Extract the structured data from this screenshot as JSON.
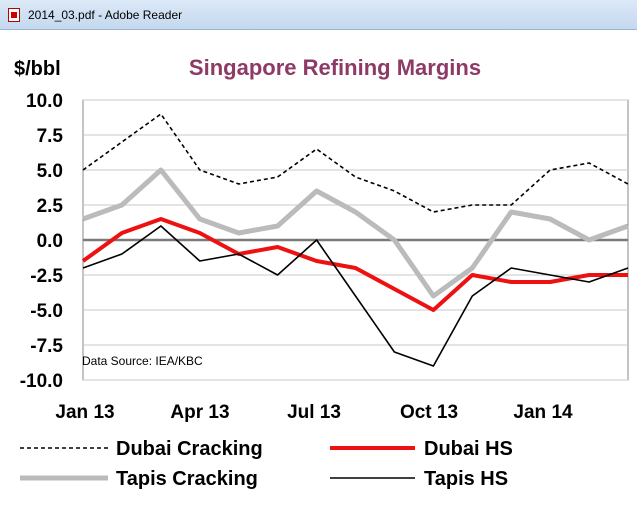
{
  "window": {
    "title": "2014_03.pdf - Adobe Reader"
  },
  "chart_data": {
    "type": "line",
    "title": "Singapore Refining Margins",
    "ylabel": "$/bbl",
    "xlabel": "",
    "ylim": [
      -10,
      10
    ],
    "yticks": [
      "10.0",
      "7.5",
      "5.0",
      "2.5",
      "0.0",
      "-2.5",
      "-5.0",
      "-7.5",
      "-10.0"
    ],
    "xticks": [
      "Jan 13",
      "Apr 13",
      "Jul 13",
      "Oct 13",
      "Jan 14"
    ],
    "grid": true,
    "legend_position": "bottom",
    "annotation": "Data Source:  IEA/KBC",
    "x": [
      "2013-01",
      "2013-02",
      "2013-03",
      "2013-04",
      "2013-05",
      "2013-06",
      "2013-07",
      "2013-08",
      "2013-09",
      "2013-10",
      "2013-11",
      "2013-12",
      "2014-01",
      "2014-02",
      "2014-03"
    ],
    "series": [
      {
        "name": "Dubai Cracking",
        "color": "#000000",
        "style": "dashed",
        "values": [
          5.0,
          7.0,
          9.0,
          5.0,
          4.0,
          4.5,
          6.5,
          4.5,
          3.5,
          2.0,
          2.5,
          2.5,
          5.0,
          5.5,
          4.0
        ]
      },
      {
        "name": "Dubai HS",
        "color": "#ee1111",
        "style": "solid",
        "values": [
          -1.5,
          0.5,
          1.5,
          0.5,
          -1.0,
          -0.5,
          -1.5,
          -2.0,
          -3.5,
          -5.0,
          -2.5,
          -3.0,
          -3.0,
          -2.5,
          -2.5
        ]
      },
      {
        "name": "Tapis Cracking",
        "color": "#bbbbbb",
        "style": "solid",
        "values": [
          1.5,
          2.5,
          5.0,
          1.5,
          0.5,
          1.0,
          3.5,
          2.0,
          0.0,
          -4.0,
          -2.0,
          2.0,
          1.5,
          0.0,
          1.0
        ]
      },
      {
        "name": "Tapis HS",
        "color": "#000000",
        "style": "solid",
        "values": [
          -2.0,
          -1.0,
          1.0,
          -1.5,
          -1.0,
          -2.5,
          0.0,
          -4.0,
          -8.0,
          -9.0,
          -4.0,
          -2.0,
          -2.5,
          -3.0,
          -2.0
        ]
      }
    ]
  }
}
